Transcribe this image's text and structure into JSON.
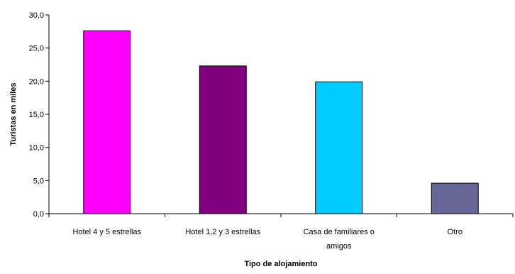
{
  "chart_data": {
    "type": "bar",
    "categories": [
      [
        "Hotel 4 y 5 estrellas"
      ],
      [
        "Hotel 1,2 y 3 estrellas"
      ],
      [
        "Casa de familiares o",
        "amigos"
      ],
      [
        "Otro"
      ]
    ],
    "values": [
      27.6,
      22.3,
      19.9,
      4.6
    ],
    "colors": [
      "#ff00ff",
      "#800080",
      "#00ccff",
      "#666699"
    ],
    "ylabel": "Turistas en miles",
    "xlabel": "Tipo de alojamiento",
    "ylim": [
      0,
      30
    ],
    "yticks": [
      "0,0",
      "5,0",
      "10,0",
      "15,0",
      "20,0",
      "25,0",
      "30,0"
    ],
    "grid": false,
    "legend": "none"
  }
}
